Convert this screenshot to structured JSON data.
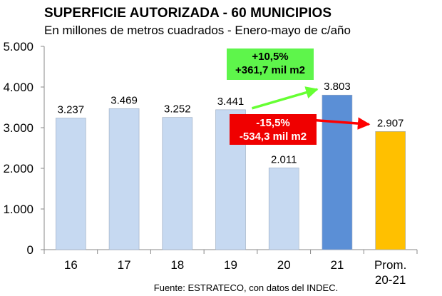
{
  "chart_data": {
    "type": "bar",
    "title": "SUPERFICIE AUTORIZADA - 60 MUNICIPIOS",
    "subtitle": "En millones de metros cuadrados - Enero-mayo de c/año",
    "categories": [
      "16",
      "17",
      "18",
      "19",
      "20",
      "21",
      "Prom. 20-21"
    ],
    "category_lines": [
      [
        "16"
      ],
      [
        "17"
      ],
      [
        "18"
      ],
      [
        "19"
      ],
      [
        "20"
      ],
      [
        "21"
      ],
      [
        "Prom.",
        "20-21"
      ]
    ],
    "values": [
      3237,
      3469,
      3252,
      3441,
      2011,
      3803,
      2907
    ],
    "value_labels": [
      "3.237",
      "3.469",
      "3.252",
      "3.441",
      "2.011",
      "3.803",
      "2.907"
    ],
    "bar_colors": [
      "#c6d9f1",
      "#c6d9f1",
      "#c6d9f1",
      "#c6d9f1",
      "#c6d9f1",
      "#5b8fd6",
      "#ffc000"
    ],
    "ylim": [
      0,
      5000
    ],
    "yticks": [
      0,
      1000,
      2000,
      3000,
      4000,
      5000
    ],
    "ytick_labels": [
      "0",
      "1.000",
      "2.000",
      "3.000",
      "4.000",
      "5.000"
    ],
    "xlabel": "",
    "ylabel": "",
    "grid": false,
    "annotations": [
      {
        "lines": [
          "+10,5%",
          "+361,7 mil m2"
        ],
        "color": "#5ef54b",
        "arrow_color": "#66ff33",
        "from_category": "19",
        "to_category": "21"
      },
      {
        "lines": [
          "-15,5%",
          "-534,3 mil m2"
        ],
        "color": "#f00000",
        "arrow_color": "#ff0000",
        "from_category": "19",
        "to_category": "Prom. 20-21"
      }
    ]
  },
  "source": "Fuente: ESTRATECO, con datos del INDEC."
}
